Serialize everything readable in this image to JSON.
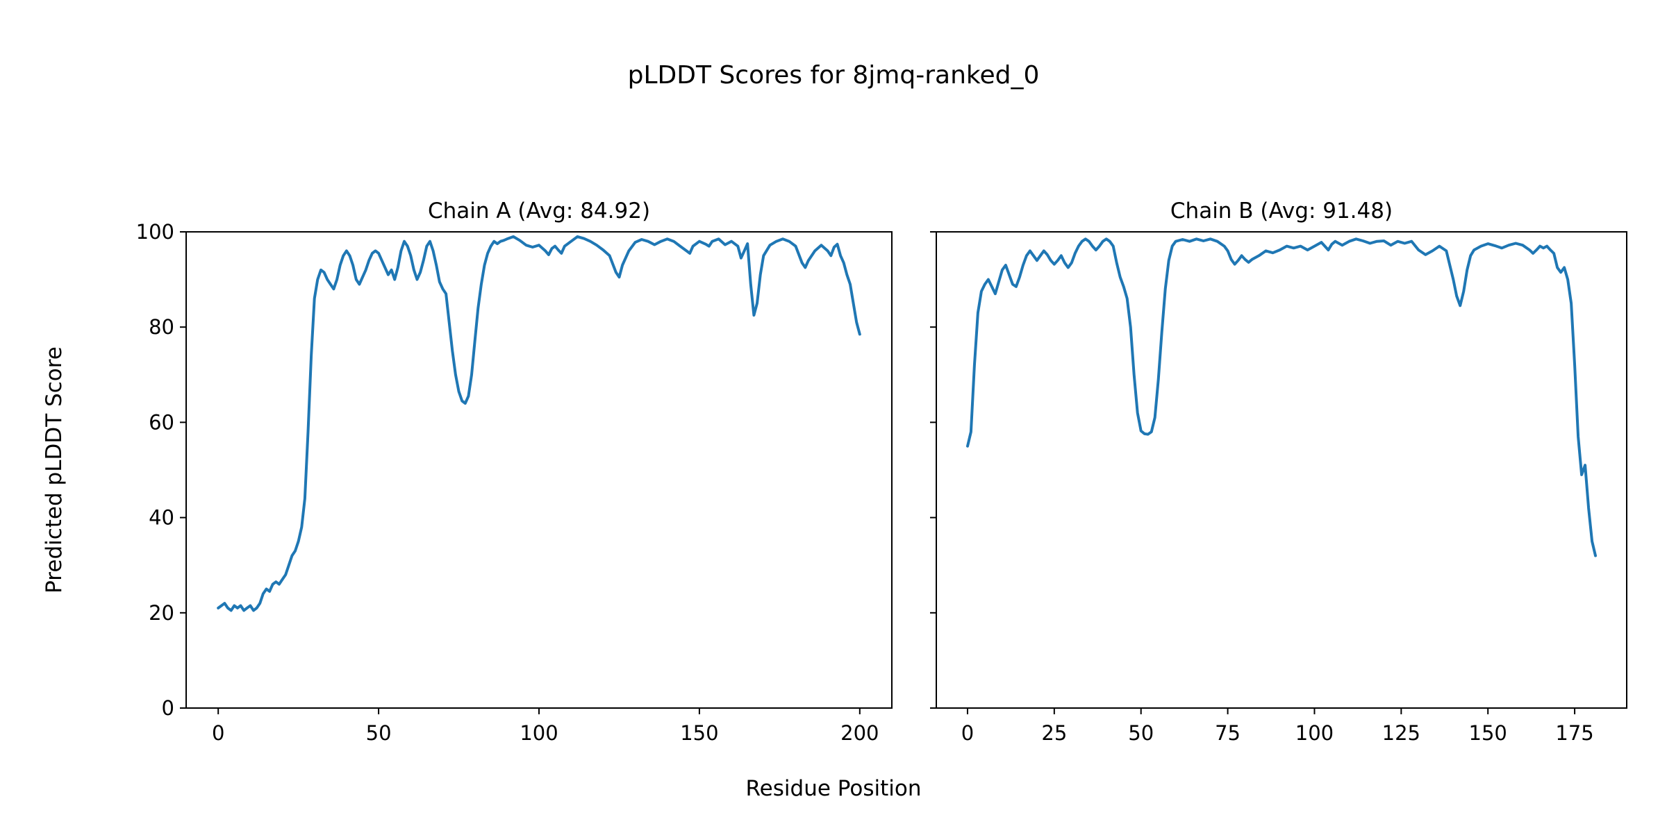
{
  "figure": {
    "title": "pLDDT Scores for 8jmq-ranked_0",
    "xlabel": "Residue Position",
    "ylabel": "Predicted pLDDT Score",
    "line_color": "#1f77b4",
    "axis_color": "#000000",
    "background": "#ffffff"
  },
  "chart_data": [
    {
      "type": "line",
      "title": "Chain A (Avg: 84.92)",
      "avg": 84.92,
      "xlim": [
        -10,
        210
      ],
      "ylim": [
        0,
        100
      ],
      "xticks": [
        0,
        50,
        100,
        150,
        200
      ],
      "yticks": [
        0,
        20,
        40,
        60,
        80,
        100
      ],
      "show_ytick_labels": true,
      "series": [
        {
          "name": "Chain A pLDDT",
          "x": [
            0,
            1,
            2,
            3,
            4,
            5,
            6,
            7,
            8,
            9,
            10,
            11,
            12,
            13,
            14,
            15,
            16,
            17,
            18,
            19,
            20,
            21,
            22,
            23,
            24,
            25,
            26,
            27,
            28,
            29,
            30,
            31,
            32,
            33,
            34,
            35,
            36,
            37,
            38,
            39,
            40,
            41,
            42,
            43,
            44,
            45,
            46,
            47,
            48,
            49,
            50,
            51,
            52,
            53,
            54,
            55,
            56,
            57,
            58,
            59,
            60,
            61,
            62,
            63,
            64,
            65,
            66,
            67,
            68,
            69,
            70,
            71,
            72,
            73,
            74,
            75,
            76,
            77,
            78,
            79,
            80,
            81,
            82,
            83,
            84,
            85,
            86,
            87,
            88,
            89,
            90,
            92,
            94,
            96,
            98,
            100,
            102,
            103,
            104,
            105,
            106,
            107,
            108,
            110,
            112,
            114,
            116,
            118,
            120,
            122,
            124,
            125,
            126,
            128,
            130,
            132,
            134,
            136,
            138,
            140,
            142,
            144,
            146,
            147,
            148,
            150,
            152,
            153,
            154,
            156,
            158,
            160,
            162,
            163,
            164,
            165,
            166,
            167,
            168,
            169,
            170,
            172,
            174,
            176,
            178,
            180,
            182,
            183,
            184,
            186,
            188,
            190,
            191,
            192,
            193,
            194,
            195,
            196,
            197,
            198,
            199,
            200
          ],
          "y": [
            21,
            21.5,
            22,
            21,
            20.5,
            21.5,
            21,
            21.5,
            20.5,
            21,
            21.5,
            20.5,
            21,
            22,
            24,
            25,
            24.5,
            26,
            26.5,
            26,
            27,
            28,
            30,
            32,
            33,
            35,
            38,
            44,
            58,
            74,
            86,
            90,
            92,
            91.5,
            90,
            89,
            88,
            90,
            93,
            95,
            96,
            95,
            93,
            90,
            89,
            90.5,
            92,
            94,
            95.5,
            96,
            95.5,
            94,
            92.5,
            91,
            92,
            90,
            92.5,
            96,
            98,
            97,
            95,
            92,
            90,
            91.5,
            94,
            97,
            98,
            96,
            93,
            89.5,
            88,
            87,
            81,
            75,
            70,
            66.5,
            64.5,
            64,
            65.5,
            70,
            77,
            84,
            89,
            93,
            95.5,
            97,
            98,
            97.5,
            98,
            98.2,
            98.5,
            99,
            98.2,
            97.2,
            96.8,
            97.2,
            96,
            95.2,
            96.5,
            97,
            96.2,
            95.5,
            97,
            98,
            99,
            98.6,
            98,
            97.2,
            96.2,
            95,
            91.5,
            90.5,
            93,
            96,
            97.8,
            98.4,
            98,
            97.3,
            98,
            98.5,
            98,
            97,
            96,
            95.5,
            97,
            98,
            97.4,
            97,
            98,
            98.5,
            97.3,
            98,
            97,
            94.5,
            96,
            97.5,
            89,
            82.5,
            85,
            91,
            95,
            97.2,
            98,
            98.5,
            98,
            97,
            93.5,
            92.5,
            94,
            96,
            97.2,
            96,
            95,
            96.8,
            97.4,
            95,
            93.5,
            91,
            89,
            85,
            81,
            78.5
          ]
        }
      ]
    },
    {
      "type": "line",
      "title": "Chain B (Avg: 91.48)",
      "avg": 91.48,
      "xlim": [
        -9,
        190
      ],
      "ylim": [
        0,
        100
      ],
      "xticks": [
        0,
        25,
        50,
        75,
        100,
        125,
        150,
        175
      ],
      "yticks": [
        0,
        20,
        40,
        60,
        80,
        100
      ],
      "show_ytick_labels": false,
      "series": [
        {
          "name": "Chain B pLDDT",
          "x": [
            0,
            1,
            2,
            3,
            4,
            5,
            6,
            7,
            8,
            9,
            10,
            11,
            12,
            13,
            14,
            15,
            16,
            17,
            18,
            19,
            20,
            21,
            22,
            23,
            24,
            25,
            26,
            27,
            28,
            29,
            30,
            31,
            32,
            33,
            34,
            35,
            36,
            37,
            38,
            39,
            40,
            41,
            42,
            43,
            44,
            45,
            46,
            47,
            48,
            49,
            50,
            51,
            52,
            53,
            54,
            55,
            56,
            57,
            58,
            59,
            60,
            62,
            64,
            66,
            68,
            70,
            72,
            74,
            75,
            76,
            77,
            78,
            79,
            80,
            81,
            82,
            84,
            86,
            88,
            90,
            92,
            94,
            96,
            98,
            100,
            102,
            103,
            104,
            105,
            106,
            108,
            110,
            112,
            114,
            116,
            118,
            120,
            122,
            124,
            126,
            128,
            130,
            132,
            134,
            136,
            138,
            140,
            141,
            142,
            143,
            144,
            145,
            146,
            148,
            150,
            152,
            154,
            156,
            158,
            160,
            162,
            163,
            164,
            165,
            166,
            167,
            168,
            169,
            170,
            171,
            172,
            173,
            174,
            175,
            176,
            177,
            178,
            179,
            180,
            181
          ],
          "y": [
            55,
            58,
            72,
            83,
            87.5,
            89,
            90,
            88.5,
            87,
            89.5,
            92,
            93,
            91,
            89,
            88.5,
            90.5,
            93,
            95,
            96,
            95,
            94,
            95,
            96,
            95.2,
            94,
            93.2,
            94,
            95,
            93.5,
            92.5,
            93.5,
            95.5,
            97,
            98,
            98.5,
            98,
            97,
            96.2,
            97,
            98,
            98.5,
            98,
            97,
            93.5,
            90.5,
            88.5,
            86,
            80,
            70,
            62,
            58.2,
            57.6,
            57.5,
            58,
            61,
            69,
            79,
            88,
            94,
            97,
            98,
            98.4,
            98,
            98.5,
            98.1,
            98.5,
            98,
            97,
            96,
            94.2,
            93.2,
            94,
            95,
            94.2,
            93.6,
            94.2,
            95,
            96,
            95.6,
            96.2,
            97,
            96.6,
            97,
            96.2,
            97,
            97.8,
            97,
            96.2,
            97.4,
            98,
            97.2,
            98,
            98.5,
            98.1,
            97.6,
            98,
            98.1,
            97.2,
            98,
            97.6,
            98,
            96.2,
            95.2,
            96,
            97,
            96,
            90,
            86.5,
            84.5,
            87.5,
            92,
            95,
            96.2,
            97,
            97.5,
            97.1,
            96.6,
            97.2,
            97.6,
            97.2,
            96.2,
            95.5,
            96.2,
            97,
            96.6,
            97,
            96.2,
            95.5,
            92.5,
            91.5,
            92.5,
            90,
            85,
            72,
            57,
            49,
            51,
            42,
            35,
            32
          ]
        }
      ]
    }
  ]
}
